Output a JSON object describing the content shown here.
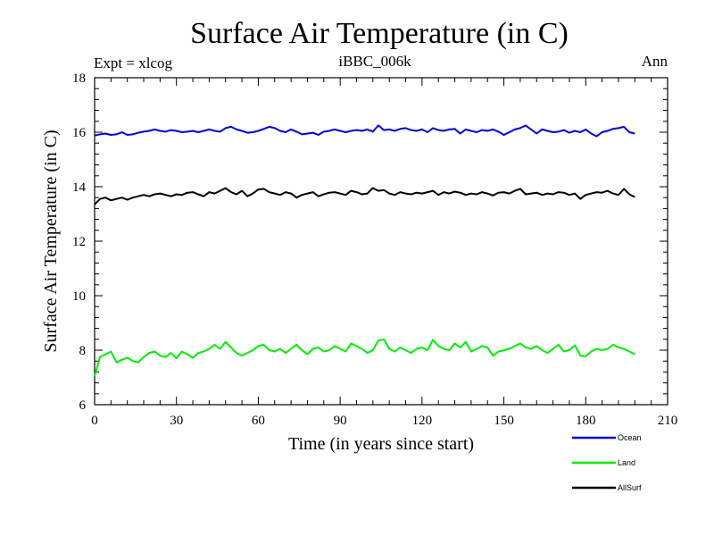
{
  "chart_data": {
    "type": "line",
    "title": "Surface Air Temperature (in C)",
    "subtitle": "iBBC_006k",
    "left_note": "Expt = xlcog",
    "right_note": "Ann",
    "xlabel": "Time (in years since start)",
    "ylabel": "Surface Air Temperature (in C)",
    "xlim": [
      0,
      210
    ],
    "ylim": [
      6,
      18
    ],
    "xticks": [
      0,
      30,
      60,
      90,
      120,
      150,
      180,
      210
    ],
    "yticks": [
      6,
      8,
      10,
      12,
      14,
      16,
      18
    ],
    "xtick_labels": [
      "0",
      "30",
      "60",
      "90",
      "120",
      "150",
      "180",
      "210"
    ],
    "ytick_labels": [
      "6",
      "8",
      "10",
      "12",
      "14",
      "16",
      "18"
    ],
    "legend_position": "bottom-right",
    "series": [
      {
        "name": "Ocean",
        "color": "#0000dd",
        "x_start": 0,
        "x_step": 2,
        "values": [
          15.88,
          15.92,
          15.95,
          15.9,
          15.92,
          16.0,
          15.9,
          15.92,
          15.98,
          16.02,
          16.05,
          16.1,
          16.05,
          16.02,
          16.08,
          16.05,
          16.0,
          16.02,
          16.05,
          16.0,
          16.05,
          16.1,
          16.05,
          16.02,
          16.15,
          16.2,
          16.1,
          16.05,
          15.98,
          16.0,
          16.05,
          16.12,
          16.2,
          16.15,
          16.05,
          16.0,
          16.1,
          16.02,
          15.92,
          15.95,
          15.98,
          15.9,
          16.02,
          16.05,
          16.1,
          16.05,
          16.0,
          16.05,
          16.08,
          16.05,
          16.1,
          16.02,
          16.25,
          16.08,
          16.1,
          16.05,
          16.12,
          16.15,
          16.08,
          16.05,
          16.1,
          16.0,
          16.15,
          16.08,
          16.05,
          16.1,
          16.12,
          15.95,
          16.1,
          16.05,
          16.0,
          16.08,
          16.05,
          16.1,
          16.02,
          15.9,
          16.0,
          16.1,
          16.15,
          16.25,
          16.1,
          15.95,
          16.1,
          16.05,
          16.0,
          16.02,
          16.08,
          15.98,
          16.05,
          16.0,
          16.1,
          15.95,
          15.85,
          16.0,
          16.05,
          16.12,
          16.15,
          16.2,
          16.0,
          15.95
        ]
      },
      {
        "name": "AllSurf",
        "color": "#000000",
        "x_start": 0,
        "x_step": 2,
        "values": [
          13.35,
          13.55,
          13.6,
          13.5,
          13.55,
          13.6,
          13.52,
          13.6,
          13.65,
          13.7,
          13.65,
          13.72,
          13.75,
          13.7,
          13.65,
          13.72,
          13.7,
          13.78,
          13.8,
          13.72,
          13.65,
          13.8,
          13.75,
          13.85,
          13.95,
          13.8,
          13.72,
          13.85,
          13.65,
          13.75,
          13.9,
          13.92,
          13.8,
          13.75,
          13.7,
          13.8,
          13.75,
          13.6,
          13.7,
          13.75,
          13.8,
          13.65,
          13.72,
          13.78,
          13.8,
          13.75,
          13.7,
          13.85,
          13.8,
          13.72,
          13.75,
          13.95,
          13.85,
          13.88,
          13.75,
          13.7,
          13.8,
          13.75,
          13.72,
          13.78,
          13.75,
          13.8,
          13.85,
          13.7,
          13.8,
          13.75,
          13.82,
          13.78,
          13.7,
          13.75,
          13.72,
          13.8,
          13.75,
          13.68,
          13.78,
          13.8,
          13.75,
          13.85,
          13.92,
          13.72,
          13.75,
          13.78,
          13.7,
          13.75,
          13.72,
          13.8,
          13.78,
          13.7,
          13.75,
          13.55,
          13.7,
          13.75,
          13.8,
          13.78,
          13.85,
          13.75,
          13.7,
          13.92,
          13.72,
          13.62
        ]
      },
      {
        "name": "Land",
        "color": "#00ee00",
        "x_start": 0,
        "x_step": 2,
        "values": [
          7.05,
          7.75,
          7.85,
          7.95,
          7.55,
          7.65,
          7.72,
          7.6,
          7.55,
          7.75,
          7.9,
          7.95,
          7.8,
          7.75,
          7.9,
          7.7,
          7.95,
          7.85,
          7.72,
          7.9,
          7.95,
          8.05,
          8.2,
          8.05,
          8.3,
          8.1,
          7.9,
          7.8,
          7.9,
          8.0,
          8.15,
          8.2,
          8.0,
          7.95,
          8.05,
          7.9,
          8.05,
          8.2,
          8.0,
          7.85,
          8.05,
          8.1,
          7.95,
          8.0,
          8.15,
          8.05,
          7.95,
          8.25,
          8.15,
          8.05,
          7.9,
          8.0,
          8.35,
          8.4,
          8.05,
          7.95,
          8.1,
          8.0,
          7.9,
          8.05,
          8.1,
          8.0,
          8.38,
          8.15,
          8.05,
          8.0,
          8.25,
          8.1,
          8.3,
          7.95,
          8.05,
          8.15,
          8.1,
          7.8,
          7.95,
          8.0,
          8.05,
          8.15,
          8.25,
          8.1,
          8.05,
          8.15,
          8.0,
          7.9,
          8.05,
          8.2,
          7.95,
          8.0,
          8.18,
          7.8,
          7.78,
          7.95,
          8.05,
          8.0,
          8.05,
          8.2,
          8.1,
          8.05,
          7.95,
          7.85
        ]
      }
    ],
    "legend_order": [
      "Ocean",
      "Land",
      "AllSurf"
    ]
  }
}
